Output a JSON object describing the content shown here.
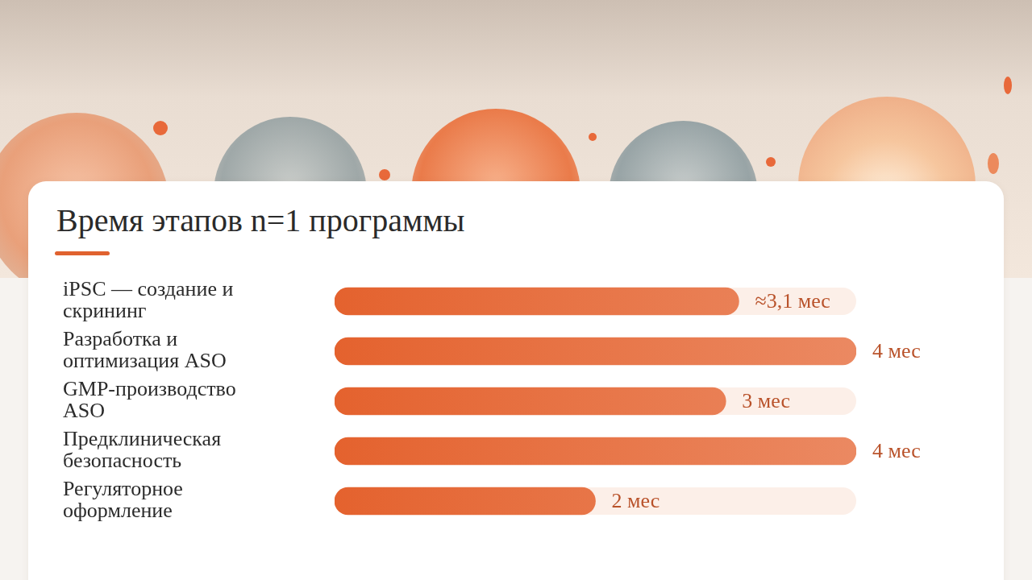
{
  "chart_data": {
    "type": "bar",
    "orientation": "horizontal",
    "title": "Время этапов n=1 программы",
    "categories": [
      "iPSC — создание и скрининг",
      "Разработка и оптимизация ASO",
      "GMP-производство ASO",
      "Предклиническая безопасность",
      "Регуляторное оформление"
    ],
    "values": [
      3.1,
      4,
      3,
      4,
      2
    ],
    "value_labels": [
      "≈3,1 мес",
      "4 мес",
      "3 мес",
      "4 мес",
      "2 мес"
    ],
    "data_labels": true,
    "color": "#e4622e",
    "xlim": [
      0,
      4
    ],
    "tick_labels": false,
    "grid": false
  }
}
